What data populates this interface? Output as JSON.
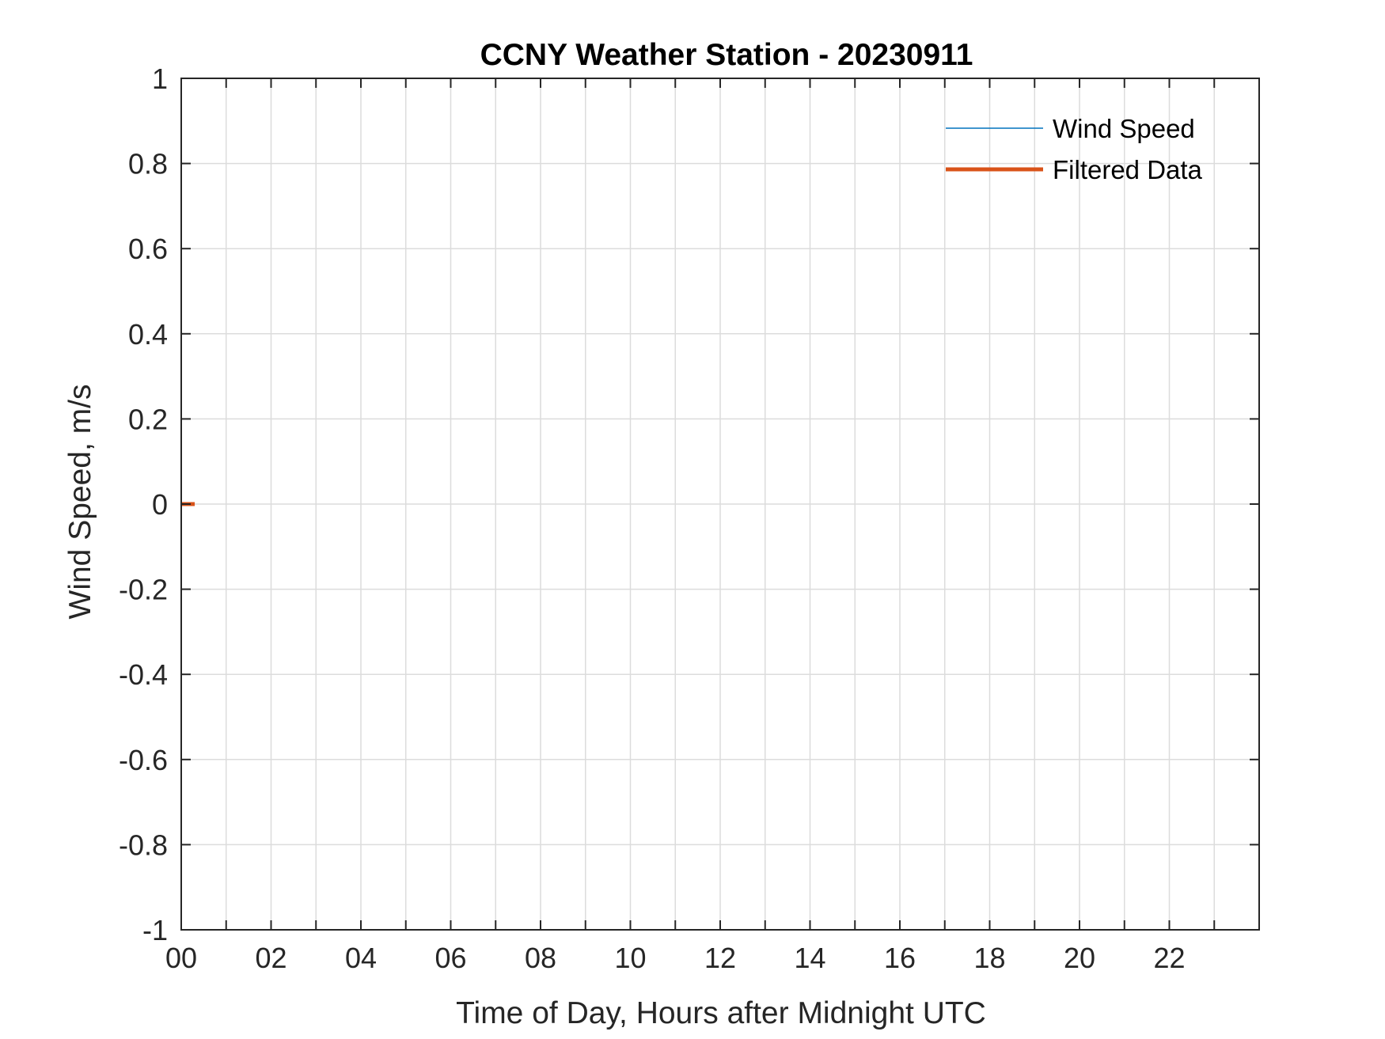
{
  "chart_data": {
    "type": "line",
    "title": "CCNY Weather Station - 20230911",
    "xlabel": "Time of Day, Hours after Midnight UTC",
    "ylabel": "Wind Speed, m/s",
    "xlim": [
      0,
      24
    ],
    "ylim": [
      -1,
      1
    ],
    "x_ticks": [
      0,
      2,
      4,
      6,
      8,
      10,
      12,
      14,
      16,
      18,
      20,
      22
    ],
    "x_tick_labels": [
      "00",
      "02",
      "04",
      "06",
      "08",
      "10",
      "12",
      "14",
      "16",
      "18",
      "20",
      "22"
    ],
    "x_minor_ticks": [
      1,
      3,
      5,
      7,
      9,
      11,
      13,
      15,
      17,
      19,
      21,
      23
    ],
    "y_ticks": [
      -1,
      -0.8,
      -0.6,
      -0.4,
      -0.2,
      0,
      0.2,
      0.4,
      0.6,
      0.8,
      1
    ],
    "y_tick_labels": [
      "-1",
      "-0.8",
      "-0.6",
      "-0.4",
      "-0.2",
      "0",
      "0.2",
      "0.4",
      "0.6",
      "0.8",
      "1"
    ],
    "grid": true,
    "legend_position": "top-right",
    "series": [
      {
        "name": "Wind Speed",
        "color": "#0072BD",
        "x": [],
        "y": []
      },
      {
        "name": "Filtered Data",
        "color": "#D95319",
        "x": [
          0,
          0.3
        ],
        "y": [
          0,
          0
        ]
      }
    ]
  }
}
